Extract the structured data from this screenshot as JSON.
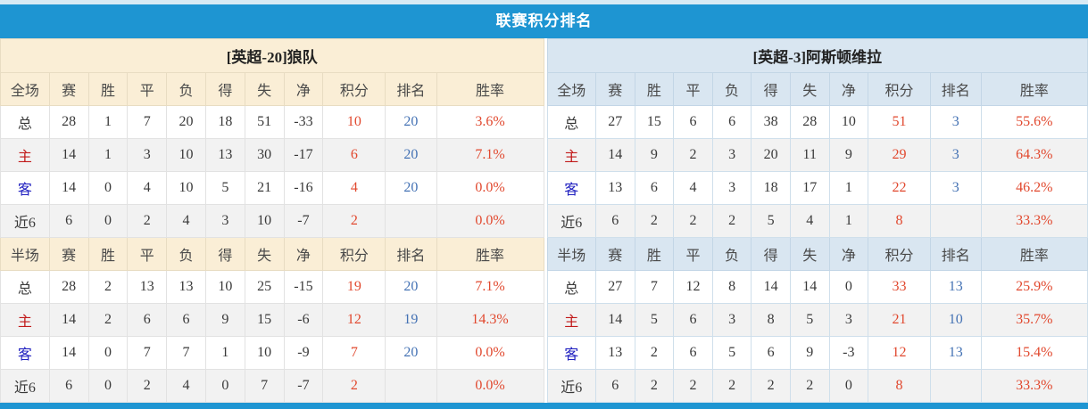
{
  "title": "联赛积分排名",
  "colors": {
    "title_bar_blue": "#1e95d2",
    "bottom_bar_blue": "#1e95d2",
    "left_header_cream": "#faeed6",
    "right_header_blue": "#d9e6f1",
    "points_red": "#e1482e",
    "winrate_red": "#e1482e",
    "rank_blue": "#4472b4",
    "home_label_red": "#c11919",
    "away_label_blue": "#2121c0",
    "zebra_gray": "#f2f2f2"
  },
  "teams": [
    {
      "title": "[英超-20]狼队",
      "sections": [
        {
          "header": [
            "全场",
            "赛",
            "胜",
            "平",
            "负",
            "得",
            "失",
            "净",
            "积分",
            "排名",
            "胜率"
          ],
          "rows": [
            {
              "label": "总",
              "values": [
                "28",
                "1",
                "7",
                "20",
                "18",
                "51",
                "-33",
                "10",
                "20",
                "3.6%"
              ]
            },
            {
              "label": "主",
              "values": [
                "14",
                "1",
                "3",
                "10",
                "13",
                "30",
                "-17",
                "6",
                "20",
                "7.1%"
              ]
            },
            {
              "label": "客",
              "values": [
                "14",
                "0",
                "4",
                "10",
                "5",
                "21",
                "-16",
                "4",
                "20",
                "0.0%"
              ]
            },
            {
              "label": "近6",
              "values": [
                "6",
                "0",
                "2",
                "4",
                "3",
                "10",
                "-7",
                "2",
                "",
                "0.0%"
              ]
            }
          ]
        },
        {
          "header": [
            "半场",
            "赛",
            "胜",
            "平",
            "负",
            "得",
            "失",
            "净",
            "积分",
            "排名",
            "胜率"
          ],
          "rows": [
            {
              "label": "总",
              "values": [
                "28",
                "2",
                "13",
                "13",
                "10",
                "25",
                "-15",
                "19",
                "20",
                "7.1%"
              ]
            },
            {
              "label": "主",
              "values": [
                "14",
                "2",
                "6",
                "6",
                "9",
                "15",
                "-6",
                "12",
                "19",
                "14.3%"
              ]
            },
            {
              "label": "客",
              "values": [
                "14",
                "0",
                "7",
                "7",
                "1",
                "10",
                "-9",
                "7",
                "20",
                "0.0%"
              ]
            },
            {
              "label": "近6",
              "values": [
                "6",
                "0",
                "2",
                "4",
                "0",
                "7",
                "-7",
                "2",
                "",
                "0.0%"
              ]
            }
          ]
        }
      ]
    },
    {
      "title": "[英超-3]阿斯顿维拉",
      "sections": [
        {
          "header": [
            "全场",
            "赛",
            "胜",
            "平",
            "负",
            "得",
            "失",
            "净",
            "积分",
            "排名",
            "胜率"
          ],
          "rows": [
            {
              "label": "总",
              "values": [
                "27",
                "15",
                "6",
                "6",
                "38",
                "28",
                "10",
                "51",
                "3",
                "55.6%"
              ]
            },
            {
              "label": "主",
              "values": [
                "14",
                "9",
                "2",
                "3",
                "20",
                "11",
                "9",
                "29",
                "3",
                "64.3%"
              ]
            },
            {
              "label": "客",
              "values": [
                "13",
                "6",
                "4",
                "3",
                "18",
                "17",
                "1",
                "22",
                "3",
                "46.2%"
              ]
            },
            {
              "label": "近6",
              "values": [
                "6",
                "2",
                "2",
                "2",
                "5",
                "4",
                "1",
                "8",
                "",
                "33.3%"
              ]
            }
          ]
        },
        {
          "header": [
            "半场",
            "赛",
            "胜",
            "平",
            "负",
            "得",
            "失",
            "净",
            "积分",
            "排名",
            "胜率"
          ],
          "rows": [
            {
              "label": "总",
              "values": [
                "27",
                "7",
                "12",
                "8",
                "14",
                "14",
                "0",
                "33",
                "13",
                "25.9%"
              ]
            },
            {
              "label": "主",
              "values": [
                "14",
                "5",
                "6",
                "3",
                "8",
                "5",
                "3",
                "21",
                "10",
                "35.7%"
              ]
            },
            {
              "label": "客",
              "values": [
                "13",
                "2",
                "6",
                "5",
                "6",
                "9",
                "-3",
                "12",
                "13",
                "15.4%"
              ]
            },
            {
              "label": "近6",
              "values": [
                "6",
                "2",
                "2",
                "2",
                "2",
                "2",
                "0",
                "8",
                "",
                "33.3%"
              ]
            }
          ]
        }
      ]
    }
  ]
}
